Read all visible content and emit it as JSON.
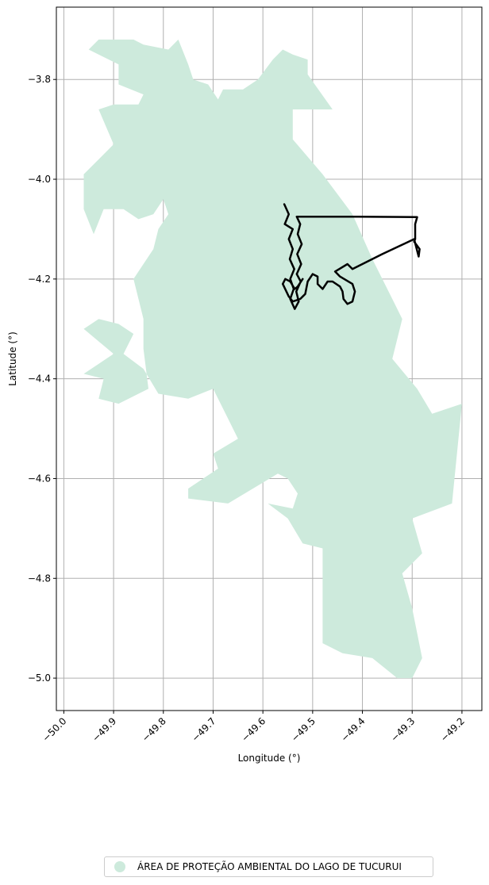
{
  "chart_data": {
    "type": "map",
    "xlabel": "Longitude (°)",
    "ylabel": "Latitude (°)",
    "xlim": [
      -50.015,
      -49.16
    ],
    "ylim": [
      -5.065,
      -3.655
    ],
    "xticks": [
      -50.0,
      -49.9,
      -49.8,
      -49.7,
      -49.6,
      -49.5,
      -49.4,
      -49.3,
      -49.2
    ],
    "xtick_labels": [
      "−50.0",
      "−49.9",
      "−49.8",
      "−49.7",
      "−49.6",
      "−49.5",
      "−49.4",
      "−49.3",
      "−49.2"
    ],
    "yticks": [
      -3.8,
      -4.0,
      -4.2,
      -4.4,
      -4.6,
      -4.8,
      -5.0
    ],
    "ytick_labels": [
      "−3.8",
      "−4.0",
      "−4.2",
      "−4.4",
      "−4.6",
      "−4.8",
      "−5.0"
    ],
    "grid": true,
    "legend_placement": "bottom-center, below axes",
    "area": {
      "name": "ÁREA DE PROTEÇÃO AMBIENTAL DO LAGO DE TUCURUI",
      "color": "#cdeadc",
      "polygon": [
        [
          -49.95,
          -3.74
        ],
        [
          -49.93,
          -3.72
        ],
        [
          -49.86,
          -3.72
        ],
        [
          -49.84,
          -3.73
        ],
        [
          -49.79,
          -3.74
        ],
        [
          -49.77,
          -3.72
        ],
        [
          -49.75,
          -3.77
        ],
        [
          -49.74,
          -3.8
        ],
        [
          -49.71,
          -3.81
        ],
        [
          -49.69,
          -3.84
        ],
        [
          -49.68,
          -3.82
        ],
        [
          -49.64,
          -3.82
        ],
        [
          -49.61,
          -3.8
        ],
        [
          -49.58,
          -3.76
        ],
        [
          -49.56,
          -3.74
        ],
        [
          -49.54,
          -3.75
        ],
        [
          -49.51,
          -3.76
        ],
        [
          -49.51,
          -3.79
        ],
        [
          -49.46,
          -3.86
        ],
        [
          -49.54,
          -3.86
        ],
        [
          -49.54,
          -3.92
        ],
        [
          -49.48,
          -3.99
        ],
        [
          -49.42,
          -4.07
        ],
        [
          -49.38,
          -4.16
        ],
        [
          -49.34,
          -4.24
        ],
        [
          -49.32,
          -4.28
        ],
        [
          -49.34,
          -4.36
        ],
        [
          -49.29,
          -4.42
        ],
        [
          -49.26,
          -4.47
        ],
        [
          -49.2,
          -4.45
        ],
        [
          -49.22,
          -4.65
        ],
        [
          -49.3,
          -4.68
        ],
        [
          -49.28,
          -4.75
        ],
        [
          -49.32,
          -4.79
        ],
        [
          -49.3,
          -4.86
        ],
        [
          -49.28,
          -4.96
        ],
        [
          -49.3,
          -5.0
        ],
        [
          -49.33,
          -5.0
        ],
        [
          -49.38,
          -4.96
        ],
        [
          -49.44,
          -4.95
        ],
        [
          -49.48,
          -4.93
        ],
        [
          -49.48,
          -4.86
        ],
        [
          -49.48,
          -4.74
        ],
        [
          -49.52,
          -4.73
        ],
        [
          -49.55,
          -4.68
        ],
        [
          -49.59,
          -4.65
        ],
        [
          -49.54,
          -4.66
        ],
        [
          -49.53,
          -4.63
        ],
        [
          -49.55,
          -4.6
        ],
        [
          -49.57,
          -4.59
        ],
        [
          -49.62,
          -4.62
        ],
        [
          -49.67,
          -4.65
        ],
        [
          -49.75,
          -4.64
        ],
        [
          -49.75,
          -4.62
        ],
        [
          -49.72,
          -4.6
        ],
        [
          -49.69,
          -4.58
        ],
        [
          -49.7,
          -4.55
        ],
        [
          -49.65,
          -4.52
        ],
        [
          -49.67,
          -4.48
        ],
        [
          -49.7,
          -4.42
        ],
        [
          -49.75,
          -4.44
        ],
        [
          -49.81,
          -4.43
        ],
        [
          -49.84,
          -4.38
        ],
        [
          -49.88,
          -4.35
        ],
        [
          -49.86,
          -4.31
        ],
        [
          -49.89,
          -4.29
        ],
        [
          -49.93,
          -4.28
        ],
        [
          -49.96,
          -4.3
        ],
        [
          -49.9,
          -4.35
        ],
        [
          -49.96,
          -4.39
        ],
        [
          -49.92,
          -4.4
        ],
        [
          -49.93,
          -4.44
        ],
        [
          -49.89,
          -4.45
        ],
        [
          -49.83,
          -4.42
        ],
        [
          -49.84,
          -4.34
        ],
        [
          -49.84,
          -4.28
        ],
        [
          -49.86,
          -4.2
        ],
        [
          -49.82,
          -4.14
        ],
        [
          -49.81,
          -4.1
        ],
        [
          -49.79,
          -4.07
        ],
        [
          -49.8,
          -4.04
        ],
        [
          -49.82,
          -4.07
        ],
        [
          -49.85,
          -4.08
        ],
        [
          -49.88,
          -4.06
        ],
        [
          -49.92,
          -4.06
        ],
        [
          -49.94,
          -4.11
        ],
        [
          -49.96,
          -4.06
        ],
        [
          -49.96,
          -3.99
        ],
        [
          -49.92,
          -3.95
        ],
        [
          -49.9,
          -3.93
        ],
        [
          -49.93,
          -3.86
        ],
        [
          -49.9,
          -3.85
        ],
        [
          -49.85,
          -3.85
        ],
        [
          -49.84,
          -3.83
        ],
        [
          -49.89,
          -3.81
        ],
        [
          -49.89,
          -3.77
        ],
        [
          -49.95,
          -3.74
        ]
      ]
    },
    "overlay": {
      "color": "#000000",
      "path": [
        [
          -49.557,
          -4.05
        ],
        [
          -49.548,
          -4.07
        ],
        [
          -49.556,
          -4.09
        ],
        [
          -49.54,
          -4.1
        ],
        [
          -49.548,
          -4.12
        ],
        [
          -49.54,
          -4.14
        ],
        [
          -49.546,
          -4.16
        ],
        [
          -49.537,
          -4.18
        ],
        [
          -49.545,
          -4.2
        ],
        [
          -49.538,
          -4.22
        ],
        [
          -49.545,
          -4.24
        ],
        [
          -49.536,
          -4.26
        ],
        [
          -49.528,
          -4.245
        ],
        [
          -49.533,
          -4.225
        ],
        [
          -49.524,
          -4.205
        ],
        [
          -49.532,
          -4.19
        ],
        [
          -49.523,
          -4.17
        ],
        [
          -49.531,
          -4.15
        ],
        [
          -49.522,
          -4.13
        ],
        [
          -49.53,
          -4.11
        ],
        [
          -49.525,
          -4.09
        ],
        [
          -49.532,
          -4.075
        ],
        [
          -49.41,
          -4.075
        ],
        [
          -49.29,
          -4.076
        ],
        [
          -49.294,
          -4.09
        ],
        [
          -49.294,
          -4.12
        ],
        [
          -49.296,
          -4.125
        ],
        [
          -49.285,
          -4.14
        ],
        [
          -49.287,
          -4.155
        ],
        [
          -49.296,
          -4.12
        ],
        [
          -49.36,
          -4.15
        ],
        [
          -49.42,
          -4.18
        ],
        [
          -49.43,
          -4.17
        ],
        [
          -49.455,
          -4.185
        ],
        [
          -49.445,
          -4.195
        ],
        [
          -49.42,
          -4.21
        ],
        [
          -49.415,
          -4.225
        ],
        [
          -49.42,
          -4.245
        ],
        [
          -49.43,
          -4.25
        ],
        [
          -49.438,
          -4.24
        ],
        [
          -49.44,
          -4.225
        ],
        [
          -49.445,
          -4.215
        ],
        [
          -49.46,
          -4.205
        ],
        [
          -49.47,
          -4.205
        ],
        [
          -49.48,
          -4.22
        ],
        [
          -49.49,
          -4.21
        ],
        [
          -49.49,
          -4.195
        ],
        [
          -49.5,
          -4.19
        ],
        [
          -49.51,
          -4.205
        ],
        [
          -49.515,
          -4.23
        ],
        [
          -49.525,
          -4.24
        ],
        [
          -49.54,
          -4.245
        ],
        [
          -49.548,
          -4.235
        ],
        [
          -49.56,
          -4.21
        ],
        [
          -49.555,
          -4.2
        ],
        [
          -49.545,
          -4.205
        ],
        [
          -49.536,
          -4.22
        ],
        [
          -49.53,
          -4.215
        ],
        [
          -49.52,
          -4.2
        ]
      ]
    }
  },
  "legend": {
    "label": "ÁREA DE PROTEÇÃO AMBIENTAL DO LAGO DE TUCURUI",
    "color": "#cdeadc"
  }
}
